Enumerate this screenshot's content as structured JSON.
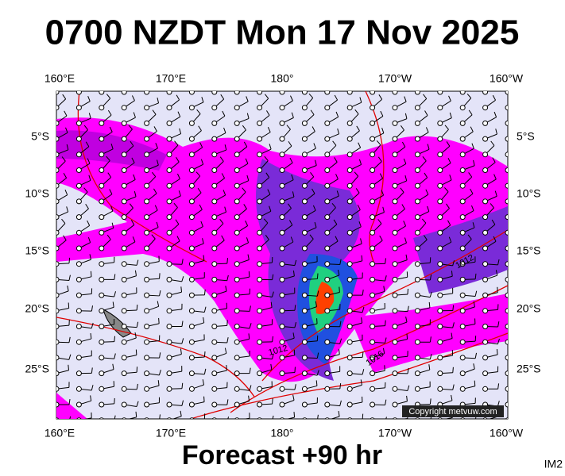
{
  "title": "0700 NZDT Mon 17 Nov 2025",
  "top_lon_labels": [
    "160°E",
    "170°E",
    "180°",
    "170°W",
    "160°W"
  ],
  "bottom_lon_labels": [
    "160°E",
    "170°E",
    "180°",
    "170°W",
    "160°W"
  ],
  "left_lat_labels": [
    "5°S",
    "10°S",
    "15°S",
    "20°S",
    "25°S"
  ],
  "right_lat_labels": [
    "5°S",
    "10°S",
    "15°S",
    "20°S",
    "25°S"
  ],
  "isobar_labels": [
    "1012",
    "1012",
    "1016"
  ],
  "copyright": "Copyright metvuw.com",
  "forecast": "Forecast +90 hr",
  "image_id": "IM2"
}
